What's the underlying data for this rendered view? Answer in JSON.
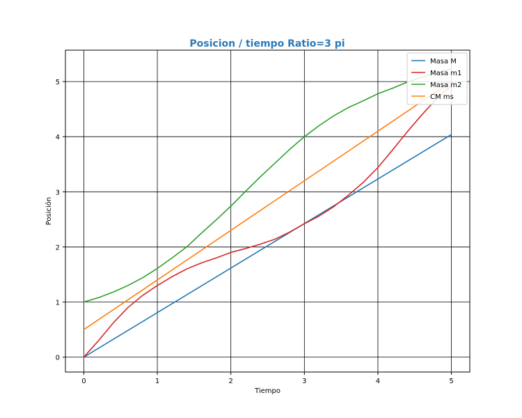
{
  "chart_data": {
    "type": "line",
    "title": "Posicion / tiempo Ratio=3 pi",
    "title_color": "#2a7ab9",
    "xlabel": "Tiempo",
    "ylabel": "Posición",
    "xlim": [
      -0.25,
      5.25
    ],
    "ylim": [
      -0.27,
      5.57
    ],
    "xticks": [
      0,
      1,
      2,
      3,
      4,
      5
    ],
    "yticks": [
      0,
      1,
      2,
      3,
      4,
      5
    ],
    "grid": true,
    "grid_color": "#000000",
    "legend_placement": "top-right",
    "series": [
      {
        "name": "Masa M",
        "color": "#1f77b4",
        "points": [
          [
            0,
            0.0
          ],
          [
            5,
            4.04
          ]
        ]
      },
      {
        "name": "Masa m1",
        "color": "#d62728",
        "points": [
          [
            0,
            0.0
          ],
          [
            0.2,
            0.3
          ],
          [
            0.4,
            0.62
          ],
          [
            0.6,
            0.9
          ],
          [
            0.8,
            1.12
          ],
          [
            1.0,
            1.3
          ],
          [
            1.2,
            1.46
          ],
          [
            1.4,
            1.6
          ],
          [
            1.6,
            1.71
          ],
          [
            1.8,
            1.8
          ],
          [
            2.0,
            1.9
          ],
          [
            2.2,
            1.97
          ],
          [
            2.4,
            2.05
          ],
          [
            2.6,
            2.14
          ],
          [
            2.8,
            2.27
          ],
          [
            3.0,
            2.42
          ],
          [
            3.2,
            2.56
          ],
          [
            3.4,
            2.73
          ],
          [
            3.6,
            2.94
          ],
          [
            3.8,
            3.17
          ],
          [
            4.0,
            3.44
          ],
          [
            4.2,
            3.76
          ],
          [
            4.4,
            4.09
          ],
          [
            4.6,
            4.4
          ],
          [
            4.8,
            4.69
          ],
          [
            5.0,
            4.93
          ]
        ]
      },
      {
        "name": "Masa m2",
        "color": "#2ca02c",
        "points": [
          [
            0,
            1.0
          ],
          [
            0.2,
            1.08
          ],
          [
            0.4,
            1.18
          ],
          [
            0.6,
            1.3
          ],
          [
            0.8,
            1.44
          ],
          [
            1.0,
            1.61
          ],
          [
            1.2,
            1.8
          ],
          [
            1.4,
            2.0
          ],
          [
            1.6,
            2.25
          ],
          [
            1.8,
            2.49
          ],
          [
            2.0,
            2.74
          ],
          [
            2.2,
            3.01
          ],
          [
            2.4,
            3.27
          ],
          [
            2.6,
            3.52
          ],
          [
            2.8,
            3.77
          ],
          [
            3.0,
            4.0
          ],
          [
            3.2,
            4.2
          ],
          [
            3.4,
            4.38
          ],
          [
            3.6,
            4.53
          ],
          [
            3.8,
            4.65
          ],
          [
            4.0,
            4.78
          ],
          [
            4.2,
            4.88
          ],
          [
            4.4,
            4.99
          ],
          [
            4.6,
            5.08
          ],
          [
            4.8,
            5.16
          ],
          [
            5.0,
            5.23
          ]
        ]
      },
      {
        "name": "CM ms",
        "color": "#ff7f0e",
        "points": [
          [
            0,
            0.5
          ],
          [
            5,
            5.0
          ]
        ]
      }
    ]
  }
}
